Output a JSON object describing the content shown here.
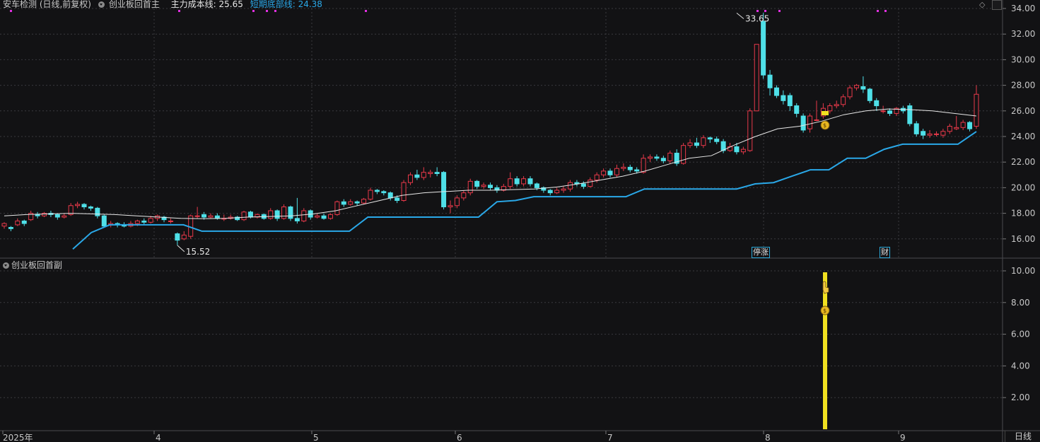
{
  "header": {
    "stock_title": "安车检测 (日线,前复权)",
    "indicator_name": "创业板回首主",
    "cost_label": "主力成本线: 25.65",
    "bottom_label": "短期底部线: 24.38"
  },
  "sub_header": {
    "indicator_name": "创业板回首副"
  },
  "markers": {
    "limit_up": "停涨",
    "finance": "财"
  },
  "annotations": {
    "high": "33.65",
    "low": "15.52"
  },
  "period_label": "日线",
  "price_axis": {
    "ticks": [
      "34.00",
      "32.00",
      "30.00",
      "28.00",
      "26.00",
      "24.00",
      "22.00",
      "20.00",
      "18.00",
      "16.00"
    ],
    "values": [
      34,
      32,
      30,
      28,
      26,
      24,
      22,
      20,
      18,
      16
    ]
  },
  "sub_axis": {
    "ticks": [
      "10.00",
      "8.00",
      "6.00",
      "4.00",
      "2.00"
    ],
    "values": [
      10,
      8,
      6,
      4,
      2
    ]
  },
  "time_axis": {
    "labels": [
      "2025年",
      "4",
      "5",
      "6",
      "7",
      "8",
      "9"
    ]
  },
  "colors": {
    "bg": "#121214",
    "up": "#e8394a",
    "down": "#4fe0e8",
    "cost_line": "#e8e8e8",
    "bottom_line": "#2aa8e8",
    "grid": "#3a3a3e",
    "signal": "#f0e020",
    "magenta": "#e030e0",
    "axis_text": "#c8c8c8",
    "bottom_text": "#2aa8e8"
  },
  "chart_data": {
    "type": "candlestick",
    "candles": [
      [
        17.0,
        17.2,
        16.8,
        17.3
      ],
      [
        16.9,
        16.8,
        16.6,
        17.0
      ],
      [
        17.1,
        17.4,
        17.0,
        17.6
      ],
      [
        17.4,
        17.2,
        17.0,
        17.5
      ],
      [
        17.5,
        18.0,
        17.4,
        18.2
      ],
      [
        17.9,
        17.8,
        17.6,
        18.1
      ],
      [
        17.8,
        18.0,
        17.7,
        18.1
      ],
      [
        18.0,
        17.9,
        17.7,
        18.2
      ],
      [
        17.9,
        17.7,
        17.5,
        18.0
      ],
      [
        17.7,
        17.8,
        17.6,
        18.0
      ],
      [
        17.9,
        18.6,
        17.8,
        18.8
      ],
      [
        18.6,
        18.7,
        18.4,
        18.9
      ],
      [
        18.7,
        18.5,
        18.3,
        18.8
      ],
      [
        18.5,
        18.4,
        18.2,
        18.6
      ],
      [
        18.4,
        17.8,
        17.6,
        18.5
      ],
      [
        17.8,
        17.0,
        16.9,
        17.9
      ],
      [
        17.1,
        17.2,
        16.9,
        17.4
      ],
      [
        17.2,
        17.1,
        16.9,
        17.3
      ],
      [
        17.1,
        17.0,
        16.9,
        17.3
      ],
      [
        17.0,
        17.2,
        16.9,
        17.4
      ],
      [
        17.2,
        17.4,
        17.0,
        17.5
      ],
      [
        17.4,
        17.3,
        17.1,
        17.6
      ],
      [
        17.3,
        17.6,
        17.2,
        17.8
      ],
      [
        17.6,
        17.8,
        17.4,
        17.9
      ],
      [
        17.7,
        17.5,
        17.3,
        17.8
      ],
      [
        17.4,
        17.4,
        17.2,
        17.6
      ],
      [
        16.4,
        15.9,
        15.5,
        16.5
      ],
      [
        16.0,
        16.3,
        15.9,
        16.6
      ],
      [
        16.2,
        17.8,
        16.0,
        17.9
      ],
      [
        17.8,
        17.8,
        17.6,
        18.5
      ],
      [
        17.9,
        17.7,
        17.5,
        18.1
      ],
      [
        17.7,
        17.8,
        17.6,
        18.0
      ],
      [
        17.8,
        17.6,
        17.5,
        18.0
      ],
      [
        17.6,
        17.6,
        17.4,
        17.9
      ],
      [
        17.6,
        17.7,
        17.5,
        17.9
      ],
      [
        17.7,
        17.5,
        17.4,
        17.8
      ],
      [
        17.5,
        18.1,
        17.4,
        18.2
      ],
      [
        18.1,
        17.7,
        17.6,
        18.2
      ],
      [
        17.7,
        17.9,
        17.6,
        18.0
      ],
      [
        17.9,
        17.6,
        17.5,
        18.0
      ],
      [
        17.6,
        18.2,
        17.5,
        18.4
      ],
      [
        18.2,
        17.6,
        17.4,
        18.3
      ],
      [
        17.6,
        18.5,
        17.5,
        18.7
      ],
      [
        18.5,
        17.6,
        17.4,
        18.6
      ],
      [
        17.6,
        17.4,
        17.2,
        19.2
      ],
      [
        17.4,
        18.2,
        17.3,
        18.4
      ],
      [
        18.2,
        17.7,
        17.5,
        18.3
      ],
      [
        17.7,
        17.8,
        17.6,
        18.0
      ],
      [
        17.8,
        17.6,
        17.5,
        18.0
      ],
      [
        17.6,
        17.9,
        17.5,
        18.0
      ],
      [
        17.9,
        18.9,
        17.8,
        19.0
      ],
      [
        18.9,
        18.7,
        18.5,
        19.1
      ],
      [
        18.7,
        18.9,
        18.6,
        19.1
      ],
      [
        18.9,
        18.8,
        18.6,
        19.0
      ],
      [
        18.8,
        19.1,
        18.7,
        19.2
      ],
      [
        19.1,
        19.8,
        19.0,
        20.0
      ],
      [
        19.8,
        19.7,
        19.5,
        19.9
      ],
      [
        19.7,
        19.6,
        19.4,
        19.8
      ],
      [
        19.6,
        19.2,
        19.0,
        19.7
      ],
      [
        19.2,
        19.0,
        18.8,
        19.4
      ],
      [
        19.0,
        20.4,
        18.9,
        20.6
      ],
      [
        20.4,
        21.0,
        20.2,
        21.2
      ],
      [
        21.0,
        20.8,
        20.6,
        21.4
      ],
      [
        20.8,
        21.2,
        20.6,
        21.6
      ],
      [
        21.1,
        21.2,
        20.8,
        21.4
      ],
      [
        21.2,
        21.1,
        20.9,
        21.6
      ],
      [
        21.2,
        18.5,
        18.3,
        21.3
      ],
      [
        18.5,
        18.6,
        18.0,
        19.0
      ],
      [
        18.6,
        19.2,
        18.4,
        19.4
      ],
      [
        19.2,
        19.6,
        19.0,
        19.8
      ],
      [
        19.6,
        20.5,
        19.4,
        20.7
      ],
      [
        20.5,
        20.1,
        19.9,
        20.6
      ],
      [
        20.1,
        20.2,
        19.9,
        20.4
      ],
      [
        20.2,
        20.0,
        19.8,
        20.4
      ],
      [
        20.0,
        19.8,
        19.6,
        20.2
      ],
      [
        19.8,
        20.1,
        19.7,
        20.3
      ],
      [
        20.1,
        20.7,
        19.9,
        21.2
      ],
      [
        20.7,
        20.3,
        20.1,
        20.9
      ],
      [
        20.3,
        20.7,
        20.1,
        20.9
      ],
      [
        20.7,
        20.3,
        20.1,
        20.9
      ],
      [
        20.3,
        20.0,
        19.8,
        20.4
      ],
      [
        20.0,
        19.8,
        19.6,
        20.1
      ],
      [
        19.8,
        19.6,
        19.4,
        19.9
      ],
      [
        19.6,
        19.8,
        19.5,
        20.0
      ],
      [
        19.8,
        19.9,
        19.6,
        20.1
      ],
      [
        19.9,
        20.4,
        19.7,
        20.6
      ],
      [
        20.4,
        20.3,
        20.1,
        20.6
      ],
      [
        20.3,
        20.1,
        19.9,
        20.5
      ],
      [
        20.1,
        20.6,
        20.0,
        20.8
      ],
      [
        20.6,
        21.0,
        20.4,
        21.2
      ],
      [
        21.0,
        21.3,
        20.8,
        21.5
      ],
      [
        21.3,
        21.0,
        20.8,
        21.5
      ],
      [
        21.0,
        21.5,
        20.8,
        21.8
      ],
      [
        21.5,
        21.6,
        21.3,
        21.9
      ],
      [
        21.6,
        21.4,
        21.2,
        21.8
      ],
      [
        21.4,
        21.3,
        21.1,
        21.6
      ],
      [
        21.2,
        22.3,
        21.1,
        22.6
      ],
      [
        22.3,
        22.4,
        22.0,
        22.6
      ],
      [
        22.4,
        22.3,
        22.1,
        22.6
      ],
      [
        22.3,
        22.1,
        21.9,
        22.5
      ],
      [
        22.1,
        22.7,
        21.9,
        22.9
      ],
      [
        22.7,
        21.9,
        21.7,
        23.0
      ],
      [
        21.9,
        23.3,
        21.8,
        23.5
      ],
      [
        23.3,
        23.5,
        23.1,
        23.8
      ],
      [
        23.5,
        23.3,
        23.1,
        23.9
      ],
      [
        23.3,
        23.9,
        23.1,
        24.1
      ],
      [
        23.9,
        23.8,
        23.5,
        24.0
      ],
      [
        23.8,
        23.6,
        23.4,
        24.0
      ],
      [
        23.6,
        22.9,
        22.7,
        23.8
      ],
      [
        22.9,
        23.2,
        22.8,
        23.5
      ],
      [
        23.2,
        22.8,
        22.6,
        23.5
      ],
      [
        22.8,
        23.0,
        22.6,
        23.2
      ],
      [
        22.9,
        26.0,
        22.8,
        26.2
      ],
      [
        26.0,
        31.2,
        26.0,
        31.2
      ],
      [
        33.0,
        28.8,
        28.5,
        33.65
      ],
      [
        28.8,
        27.8,
        27.2,
        29.2
      ],
      [
        27.8,
        27.2,
        27.0,
        28.0
      ],
      [
        27.2,
        26.8,
        26.5,
        27.6
      ],
      [
        27.2,
        26.4,
        26.0,
        27.4
      ],
      [
        26.4,
        25.8,
        25.5,
        26.6
      ],
      [
        25.6,
        24.5,
        24.3,
        25.8
      ],
      [
        24.6,
        25.6,
        24.3,
        25.8
      ],
      [
        25.3,
        25.3,
        25.2,
        26.8
      ],
      [
        25.6,
        26.2,
        25.4,
        26.6
      ],
      [
        26.0,
        26.4,
        25.8,
        26.6
      ],
      [
        26.4,
        26.5,
        26.2,
        26.8
      ],
      [
        26.5,
        27.1,
        26.3,
        27.3
      ],
      [
        27.1,
        27.8,
        26.9,
        28.0
      ],
      [
        27.8,
        28.0,
        27.6,
        28.1
      ],
      [
        27.9,
        27.7,
        27.4,
        28.7
      ],
      [
        27.7,
        26.8,
        26.6,
        27.8
      ],
      [
        26.8,
        26.4,
        26.0,
        27.0
      ],
      [
        26.0,
        26.0,
        25.8,
        26.4
      ],
      [
        26.0,
        25.8,
        25.6,
        26.2
      ],
      [
        25.8,
        26.2,
        25.6,
        26.3
      ],
      [
        26.2,
        26.0,
        25.8,
        26.4
      ],
      [
        26.4,
        25.0,
        24.8,
        26.6
      ],
      [
        25.0,
        24.2,
        24.0,
        25.2
      ],
      [
        24.4,
        24.1,
        23.8,
        24.6
      ],
      [
        24.1,
        24.2,
        23.9,
        24.5
      ],
      [
        24.2,
        24.2,
        24.0,
        24.4
      ],
      [
        24.1,
        24.4,
        23.9,
        24.6
      ],
      [
        24.4,
        24.8,
        24.2,
        25.0
      ],
      [
        24.6,
        24.7,
        24.5,
        25.6
      ],
      [
        24.7,
        25.1,
        24.5,
        25.3
      ],
      [
        25.1,
        24.6,
        24.4,
        25.2
      ],
      [
        24.8,
        27.3,
        24.6,
        28.0
      ]
    ],
    "cost_line": [
      17.8,
      17.9,
      17.95,
      18.0,
      17.95,
      17.9,
      17.8,
      17.7,
      17.6,
      17.58,
      17.6,
      17.7,
      17.75,
      17.8,
      17.95,
      18.2,
      18.6,
      19.0,
      19.4,
      19.6,
      19.7,
      19.8,
      19.8,
      19.85,
      19.9,
      20.05,
      20.3,
      20.6,
      20.9,
      21.3,
      21.8,
      22.3,
      22.5,
      23.3,
      24.0,
      24.6,
      24.8,
      25.2,
      25.7,
      26.0,
      26.15,
      26.1,
      26.0,
      25.8,
      25.6
    ],
    "bottom_line": [
      15.2,
      16.5,
      17.1,
      17.1,
      17.1,
      17.1,
      17.1,
      16.6,
      16.6,
      16.6,
      16.6,
      16.6,
      16.6,
      16.6,
      16.6,
      16.6,
      17.7,
      17.7,
      17.7,
      17.7,
      17.7,
      17.7,
      17.7,
      18.9,
      19.0,
      19.3,
      19.3,
      19.3,
      19.3,
      19.3,
      19.3,
      19.9,
      19.9,
      19.9,
      19.9,
      19.9,
      19.9,
      20.3,
      20.4,
      20.9,
      21.4,
      21.4,
      22.3,
      22.3,
      23.0,
      23.4,
      23.4,
      23.4,
      23.4,
      24.38
    ],
    "sub_signal_value": 10.0
  }
}
